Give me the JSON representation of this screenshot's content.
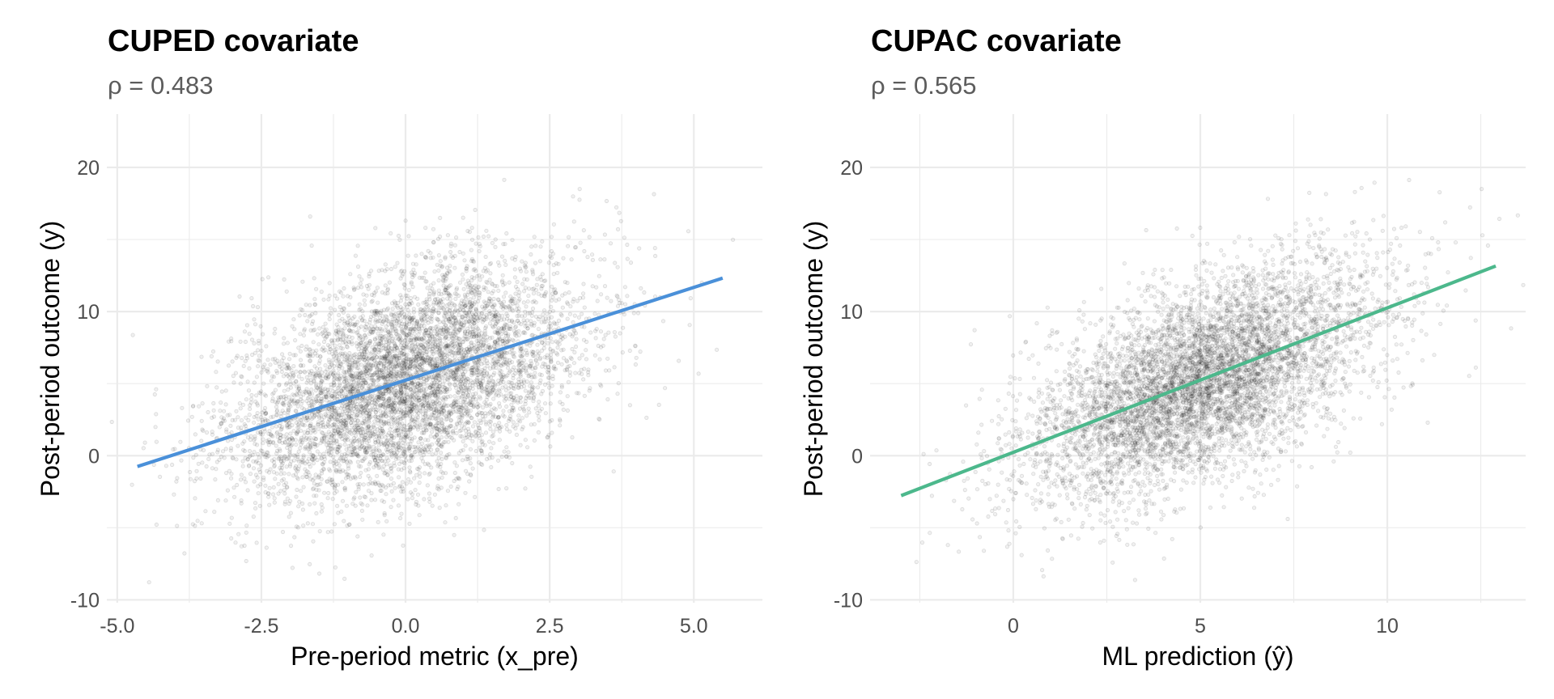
{
  "chart_data": [
    {
      "type": "scatter",
      "title": "CUPED covariate",
      "subtitle": "ρ = 0.483",
      "xlabel": "Pre-period metric (x_pre)",
      "ylabel": "Post-period outcome (y)",
      "xlim": [
        -5.18,
        6.19
      ],
      "ylim": [
        -10.2,
        23.7
      ],
      "x_ticks": [
        -5.0,
        -2.5,
        0.0,
        2.5,
        5.0
      ],
      "x_tick_labels": [
        "-5.0",
        "-2.5",
        "0.0",
        "2.5",
        "5.0"
      ],
      "y_ticks": [
        -10,
        0,
        10,
        20
      ],
      "y_tick_labels": [
        "-10",
        "0",
        "10",
        "20"
      ],
      "grid": true,
      "legend": "none",
      "point_color": "#000000",
      "point_alpha": 0.1,
      "cloud": {
        "x_mean": 0.0,
        "x_sd": 1.5,
        "y_mean": 5.2,
        "y_sd": 4.0,
        "rho": 0.483
      },
      "fit_line": {
        "color": "#4a90d9",
        "x": [
          -4.65,
          5.5
        ],
        "y": [
          -0.75,
          12.32
        ]
      }
    },
    {
      "type": "scatter",
      "title": "CUPAC covariate",
      "subtitle": "ρ = 0.565",
      "xlabel": "ML prediction (ŷ)",
      "ylabel": "Post-period outcome (y)",
      "xlim": [
        -3.83,
        13.7
      ],
      "ylim": [
        -10.2,
        23.7
      ],
      "x_ticks": [
        0,
        5,
        10
      ],
      "x_tick_labels": [
        "0",
        "5",
        "10"
      ],
      "y_ticks": [
        -10,
        0,
        10,
        20
      ],
      "y_tick_labels": [
        "-10",
        "0",
        "10",
        "20"
      ],
      "grid": true,
      "legend": "none",
      "point_color": "#000000",
      "point_alpha": 0.1,
      "cloud": {
        "x_mean": 5.0,
        "x_sd": 2.3,
        "y_mean": 5.2,
        "y_sd": 4.0,
        "rho": 0.565
      },
      "fit_line": {
        "color": "#4cb88c",
        "x": [
          -3.0,
          12.9
        ],
        "y": [
          -2.77,
          13.16
        ]
      }
    }
  ]
}
